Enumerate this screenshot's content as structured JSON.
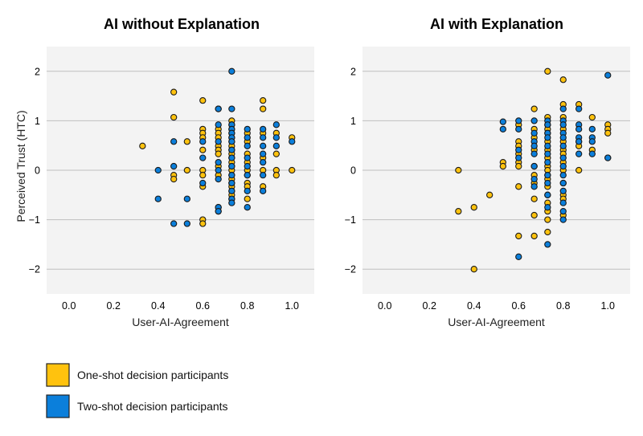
{
  "chart_data": [
    {
      "type": "scatter",
      "title": "AI without Explanation",
      "xlabel": "User-AI-Agreement",
      "ylabel": "Perceived Trust (HTC)",
      "xlim": [
        -0.1,
        1.1
      ],
      "ylim": [
        -2.5,
        2.5
      ],
      "x_ticks": [
        0.0,
        0.2,
        0.4,
        0.6,
        0.8,
        1.0
      ],
      "x_tick_labels": [
        "0.0",
        "0.2",
        "0.4",
        "0.6",
        "0.8",
        "1.0"
      ],
      "y_ticks": [
        2,
        1,
        0,
        -1,
        -2
      ],
      "y_tick_labels": [
        "2",
        "1",
        "0",
        "−1",
        "−2"
      ],
      "grid": "horizontal",
      "series": [
        {
          "name": "One-shot decision participants",
          "color": "#FFC20E",
          "points": [
            [
              0.33,
              0.49
            ],
            [
              0.47,
              1.58
            ],
            [
              0.47,
              1.07
            ],
            [
              0.47,
              -0.1
            ],
            [
              0.47,
              -0.18
            ],
            [
              0.53,
              0.58
            ],
            [
              0.53,
              0.0
            ],
            [
              0.6,
              1.41
            ],
            [
              0.6,
              0.83
            ],
            [
              0.6,
              0.75
            ],
            [
              0.6,
              0.66
            ],
            [
              0.6,
              0.41
            ],
            [
              0.6,
              0.0
            ],
            [
              0.6,
              -0.1
            ],
            [
              0.6,
              -0.33
            ],
            [
              0.6,
              -1.0
            ],
            [
              0.6,
              -1.08
            ],
            [
              0.67,
              1.24
            ],
            [
              0.67,
              0.83
            ],
            [
              0.67,
              0.75
            ],
            [
              0.67,
              0.66
            ],
            [
              0.67,
              0.49
            ],
            [
              0.67,
              0.41
            ],
            [
              0.67,
              0.33
            ],
            [
              0.67,
              0.08
            ],
            [
              0.67,
              -0.1
            ],
            [
              0.67,
              -0.75
            ],
            [
              0.67,
              -0.83
            ],
            [
              0.73,
              1.0
            ],
            [
              0.73,
              0.92
            ],
            [
              0.73,
              0.83
            ],
            [
              0.73,
              0.75
            ],
            [
              0.73,
              0.66
            ],
            [
              0.73,
              0.58
            ],
            [
              0.73,
              0.49
            ],
            [
              0.73,
              0.41
            ],
            [
              0.73,
              0.33
            ],
            [
              0.73,
              0.25
            ],
            [
              0.73,
              0.16
            ],
            [
              0.73,
              0.08
            ],
            [
              0.73,
              0.0
            ],
            [
              0.73,
              -0.1
            ],
            [
              0.73,
              -0.18
            ],
            [
              0.73,
              -0.26
            ],
            [
              0.73,
              -0.33
            ],
            [
              0.73,
              -0.42
            ],
            [
              0.73,
              -0.5
            ],
            [
              0.73,
              -0.58
            ],
            [
              0.8,
              0.75
            ],
            [
              0.8,
              0.58
            ],
            [
              0.8,
              0.33
            ],
            [
              0.8,
              0.16
            ],
            [
              0.8,
              0.0
            ],
            [
              0.8,
              -0.1
            ],
            [
              0.8,
              -0.26
            ],
            [
              0.8,
              -0.33
            ],
            [
              0.8,
              -0.58
            ],
            [
              0.87,
              1.41
            ],
            [
              0.87,
              1.24
            ],
            [
              0.87,
              0.75
            ],
            [
              0.87,
              0.25
            ],
            [
              0.87,
              0.0
            ],
            [
              0.87,
              -0.33
            ],
            [
              0.93,
              0.75
            ],
            [
              0.93,
              0.33
            ],
            [
              0.93,
              0.0
            ],
            [
              0.93,
              -0.1
            ],
            [
              1.0,
              0.66
            ],
            [
              1.0,
              0.0
            ]
          ]
        },
        {
          "name": "Two-shot decision participants",
          "color": "#0B7FDB",
          "points": [
            [
              0.4,
              0.0
            ],
            [
              0.4,
              -0.58
            ],
            [
              0.47,
              0.58
            ],
            [
              0.47,
              0.08
            ],
            [
              0.47,
              -1.08
            ],
            [
              0.53,
              -0.58
            ],
            [
              0.53,
              -1.08
            ],
            [
              0.6,
              0.58
            ],
            [
              0.6,
              0.25
            ],
            [
              0.6,
              -0.26
            ],
            [
              0.67,
              1.24
            ],
            [
              0.67,
              0.92
            ],
            [
              0.67,
              0.58
            ],
            [
              0.67,
              0.16
            ],
            [
              0.67,
              0.0
            ],
            [
              0.67,
              -0.18
            ],
            [
              0.67,
              -0.75
            ],
            [
              0.67,
              -0.83
            ],
            [
              0.73,
              2.0
            ],
            [
              0.73,
              1.24
            ],
            [
              0.73,
              0.92
            ],
            [
              0.73,
              0.83
            ],
            [
              0.73,
              0.75
            ],
            [
              0.73,
              0.66
            ],
            [
              0.73,
              0.58
            ],
            [
              0.73,
              0.41
            ],
            [
              0.73,
              0.25
            ],
            [
              0.73,
              0.08
            ],
            [
              0.73,
              -0.1
            ],
            [
              0.73,
              -0.26
            ],
            [
              0.73,
              -0.42
            ],
            [
              0.73,
              -0.58
            ],
            [
              0.73,
              -0.66
            ],
            [
              0.8,
              0.83
            ],
            [
              0.8,
              0.66
            ],
            [
              0.8,
              0.49
            ],
            [
              0.8,
              0.25
            ],
            [
              0.8,
              0.08
            ],
            [
              0.8,
              -0.1
            ],
            [
              0.8,
              -0.42
            ],
            [
              0.8,
              -0.75
            ],
            [
              0.87,
              0.83
            ],
            [
              0.87,
              0.66
            ],
            [
              0.87,
              0.49
            ],
            [
              0.87,
              0.33
            ],
            [
              0.87,
              0.16
            ],
            [
              0.87,
              -0.1
            ],
            [
              0.87,
              -0.42
            ],
            [
              0.93,
              0.92
            ],
            [
              0.93,
              0.66
            ],
            [
              0.93,
              0.49
            ],
            [
              1.0,
              0.58
            ]
          ]
        }
      ]
    },
    {
      "type": "scatter",
      "title": "AI with Explanation",
      "xlabel": "User-AI-Agreement",
      "ylabel": "",
      "xlim": [
        -0.1,
        1.1
      ],
      "ylim": [
        -2.5,
        2.5
      ],
      "x_ticks": [
        0.0,
        0.2,
        0.4,
        0.6,
        0.8,
        1.0
      ],
      "x_tick_labels": [
        "0.0",
        "0.2",
        "0.4",
        "0.6",
        "0.8",
        "1.0"
      ],
      "y_ticks": [
        2,
        1,
        0,
        -1,
        -2
      ],
      "y_tick_labels": [
        "2",
        "1",
        "0",
        "−1",
        "−2"
      ],
      "grid": "horizontal",
      "series": [
        {
          "name": "One-shot decision participants",
          "color": "#FFC20E",
          "points": [
            [
              0.33,
              0.0
            ],
            [
              0.33,
              -0.83
            ],
            [
              0.4,
              -0.75
            ],
            [
              0.4,
              -2.0
            ],
            [
              0.47,
              -0.5
            ],
            [
              0.53,
              0.16
            ],
            [
              0.53,
              0.08
            ],
            [
              0.6,
              0.92
            ],
            [
              0.6,
              0.58
            ],
            [
              0.6,
              0.49
            ],
            [
              0.6,
              0.33
            ],
            [
              0.6,
              0.16
            ],
            [
              0.6,
              0.08
            ],
            [
              0.6,
              -0.33
            ],
            [
              0.6,
              -1.33
            ],
            [
              0.67,
              1.24
            ],
            [
              0.67,
              0.83
            ],
            [
              0.67,
              0.66
            ],
            [
              0.67,
              0.41
            ],
            [
              0.67,
              0.08
            ],
            [
              0.67,
              -0.1
            ],
            [
              0.67,
              -0.26
            ],
            [
              0.67,
              -0.58
            ],
            [
              0.67,
              -0.91
            ],
            [
              0.67,
              -1.33
            ],
            [
              0.73,
              2.0
            ],
            [
              0.73,
              1.07
            ],
            [
              0.73,
              0.92
            ],
            [
              0.73,
              0.83
            ],
            [
              0.73,
              0.75
            ],
            [
              0.73,
              0.58
            ],
            [
              0.73,
              0.41
            ],
            [
              0.73,
              0.25
            ],
            [
              0.73,
              0.08
            ],
            [
              0.73,
              0.0
            ],
            [
              0.73,
              -0.1
            ],
            [
              0.73,
              -0.18
            ],
            [
              0.73,
              -0.33
            ],
            [
              0.73,
              -0.5
            ],
            [
              0.73,
              -0.66
            ],
            [
              0.73,
              -0.83
            ],
            [
              0.73,
              -1.0
            ],
            [
              0.73,
              -1.25
            ],
            [
              0.8,
              1.83
            ],
            [
              0.8,
              1.33
            ],
            [
              0.8,
              1.07
            ],
            [
              0.8,
              0.83
            ],
            [
              0.8,
              0.58
            ],
            [
              0.8,
              0.41
            ],
            [
              0.8,
              0.33
            ],
            [
              0.8,
              0.16
            ],
            [
              0.8,
              0.0
            ],
            [
              0.8,
              -0.26
            ],
            [
              0.8,
              -0.5
            ],
            [
              0.8,
              -0.58
            ],
            [
              0.8,
              -0.91
            ],
            [
              0.87,
              1.33
            ],
            [
              0.87,
              0.58
            ],
            [
              0.87,
              0.49
            ],
            [
              0.87,
              0.0
            ],
            [
              0.93,
              1.07
            ],
            [
              0.93,
              0.41
            ],
            [
              1.0,
              0.92
            ],
            [
              1.0,
              0.83
            ],
            [
              1.0,
              0.75
            ],
            [
              1.0,
              0.25
            ]
          ]
        },
        {
          "name": "Two-shot decision participants",
          "color": "#0B7FDB",
          "points": [
            [
              0.53,
              0.98
            ],
            [
              0.53,
              0.83
            ],
            [
              0.6,
              1.0
            ],
            [
              0.6,
              0.83
            ],
            [
              0.6,
              0.41
            ],
            [
              0.6,
              0.25
            ],
            [
              0.6,
              -1.75
            ],
            [
              0.67,
              1.0
            ],
            [
              0.67,
              0.75
            ],
            [
              0.67,
              0.58
            ],
            [
              0.67,
              0.49
            ],
            [
              0.67,
              0.33
            ],
            [
              0.67,
              0.08
            ],
            [
              0.67,
              -0.18
            ],
            [
              0.67,
              -0.33
            ],
            [
              0.73,
              1.0
            ],
            [
              0.73,
              0.92
            ],
            [
              0.73,
              0.75
            ],
            [
              0.73,
              0.66
            ],
            [
              0.73,
              0.49
            ],
            [
              0.73,
              0.33
            ],
            [
              0.73,
              0.16
            ],
            [
              0.73,
              -0.1
            ],
            [
              0.73,
              -0.26
            ],
            [
              0.73,
              -0.5
            ],
            [
              0.73,
              -0.75
            ],
            [
              0.73,
              -1.5
            ],
            [
              0.8,
              1.24
            ],
            [
              0.8,
              1.0
            ],
            [
              0.8,
              0.92
            ],
            [
              0.8,
              0.75
            ],
            [
              0.8,
              0.66
            ],
            [
              0.8,
              0.49
            ],
            [
              0.8,
              0.25
            ],
            [
              0.8,
              0.08
            ],
            [
              0.8,
              -0.1
            ],
            [
              0.8,
              -0.26
            ],
            [
              0.8,
              -0.42
            ],
            [
              0.8,
              -0.66
            ],
            [
              0.8,
              -0.83
            ],
            [
              0.8,
              -1.0
            ],
            [
              0.87,
              1.24
            ],
            [
              0.87,
              0.92
            ],
            [
              0.87,
              0.83
            ],
            [
              0.87,
              0.66
            ],
            [
              0.87,
              0.58
            ],
            [
              0.87,
              0.33
            ],
            [
              0.93,
              0.83
            ],
            [
              0.93,
              0.66
            ],
            [
              0.93,
              0.58
            ],
            [
              0.93,
              0.33
            ],
            [
              1.0,
              1.92
            ],
            [
              1.0,
              0.25
            ]
          ]
        }
      ]
    }
  ],
  "legend": {
    "items": [
      {
        "label": "One-shot decision participants",
        "color": "#FFC20E"
      },
      {
        "label": "Two-shot decision participants",
        "color": "#0B7FDB"
      }
    ]
  },
  "style": {
    "plot_background": "#F3F3F3",
    "grid_color": "#BFBFBF",
    "marker_edge": "#1A1A1A"
  }
}
